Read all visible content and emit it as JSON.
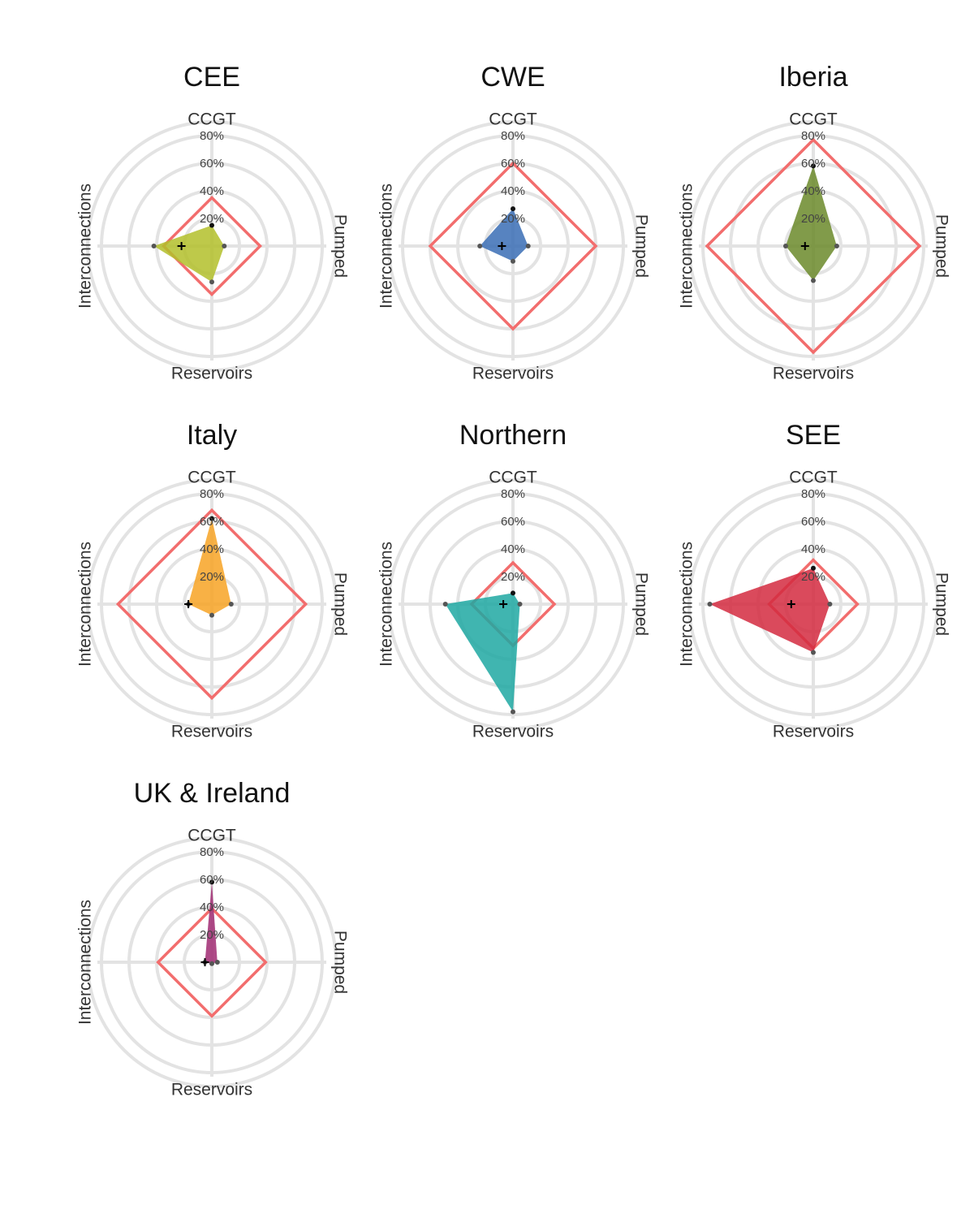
{
  "chart_data": [
    {
      "type": "radar",
      "title": "CEE",
      "categories": [
        "CCGT",
        "Pumped",
        "Reservoirs",
        "Interconnections"
      ],
      "values": [
        15,
        9,
        26,
        42
      ],
      "color": "#b3bf2a",
      "reference": 35,
      "marker": 22,
      "ylim": [
        0,
        90
      ],
      "yticks": [
        {
          "value": 20,
          "label": "20%"
        },
        {
          "value": 40,
          "label": "40%"
        },
        {
          "value": 60,
          "label": "60%"
        },
        {
          "value": 80,
          "label": "80%"
        }
      ]
    },
    {
      "type": "radar",
      "title": "CWE",
      "categories": [
        "CCGT",
        "Pumped",
        "Reservoirs",
        "Interconnections"
      ],
      "values": [
        27,
        11,
        11,
        24
      ],
      "color": "#3a6db5",
      "reference": 60,
      "marker": 8,
      "ylim": [
        0,
        90
      ],
      "yticks": [
        {
          "value": 20,
          "label": "20%"
        },
        {
          "value": 40,
          "label": "40%"
        },
        {
          "value": 60,
          "label": "60%"
        },
        {
          "value": 80,
          "label": "80%"
        }
      ]
    },
    {
      "type": "radar",
      "title": "Iberia",
      "categories": [
        "CCGT",
        "Pumped",
        "Reservoirs",
        "Interconnections"
      ],
      "values": [
        58,
        17,
        25,
        20
      ],
      "color": "#6b8a2a",
      "reference": 77,
      "marker": 6,
      "ylim": [
        0,
        90
      ],
      "yticks": [
        {
          "value": 20,
          "label": "20%"
        },
        {
          "value": 40,
          "label": "40%"
        },
        {
          "value": 60,
          "label": "60%"
        },
        {
          "value": 80,
          "label": "80%"
        }
      ]
    },
    {
      "type": "radar",
      "title": "Italy",
      "categories": [
        "CCGT",
        "Pumped",
        "Reservoirs",
        "Interconnections"
      ],
      "values": [
        62,
        14,
        8,
        17
      ],
      "color": "#f7a325",
      "reference": 68,
      "marker": 17,
      "ylim": [
        0,
        90
      ],
      "yticks": [
        {
          "value": 20,
          "label": "20%"
        },
        {
          "value": 40,
          "label": "40%"
        },
        {
          "value": 60,
          "label": "60%"
        },
        {
          "value": 80,
          "label": "80%"
        }
      ]
    },
    {
      "type": "radar",
      "title": "Northern",
      "categories": [
        "CCGT",
        "Pumped",
        "Reservoirs",
        "Interconnections"
      ],
      "values": [
        8,
        5,
        78,
        49
      ],
      "color": "#1fa8a2",
      "reference": 30,
      "marker": 7,
      "ylim": [
        0,
        90
      ],
      "yticks": [
        {
          "value": 20,
          "label": "20%"
        },
        {
          "value": 40,
          "label": "40%"
        },
        {
          "value": 60,
          "label": "60%"
        },
        {
          "value": 80,
          "label": "80%"
        }
      ]
    },
    {
      "type": "radar",
      "title": "SEE",
      "categories": [
        "CCGT",
        "Pumped",
        "Reservoirs",
        "Interconnections"
      ],
      "values": [
        26,
        12,
        35,
        75
      ],
      "color": "#d42a40",
      "reference": 32,
      "marker": 16,
      "ylim": [
        0,
        90
      ],
      "yticks": [
        {
          "value": 20,
          "label": "20%"
        },
        {
          "value": 40,
          "label": "40%"
        },
        {
          "value": 60,
          "label": "60%"
        },
        {
          "value": 80,
          "label": "80%"
        }
      ]
    },
    {
      "type": "radar",
      "title": "UK & Ireland",
      "categories": [
        "CCGT",
        "Pumped",
        "Reservoirs",
        "Interconnections"
      ],
      "values": [
        58,
        4,
        1,
        5
      ],
      "color": "#a02a72",
      "reference": 39,
      "marker": 5,
      "ylim": [
        0,
        90
      ],
      "yticks": [
        {
          "value": 20,
          "label": "20%"
        },
        {
          "value": 40,
          "label": "40%"
        },
        {
          "value": 60,
          "label": "60%"
        },
        {
          "value": 80,
          "label": "80%"
        }
      ]
    }
  ]
}
